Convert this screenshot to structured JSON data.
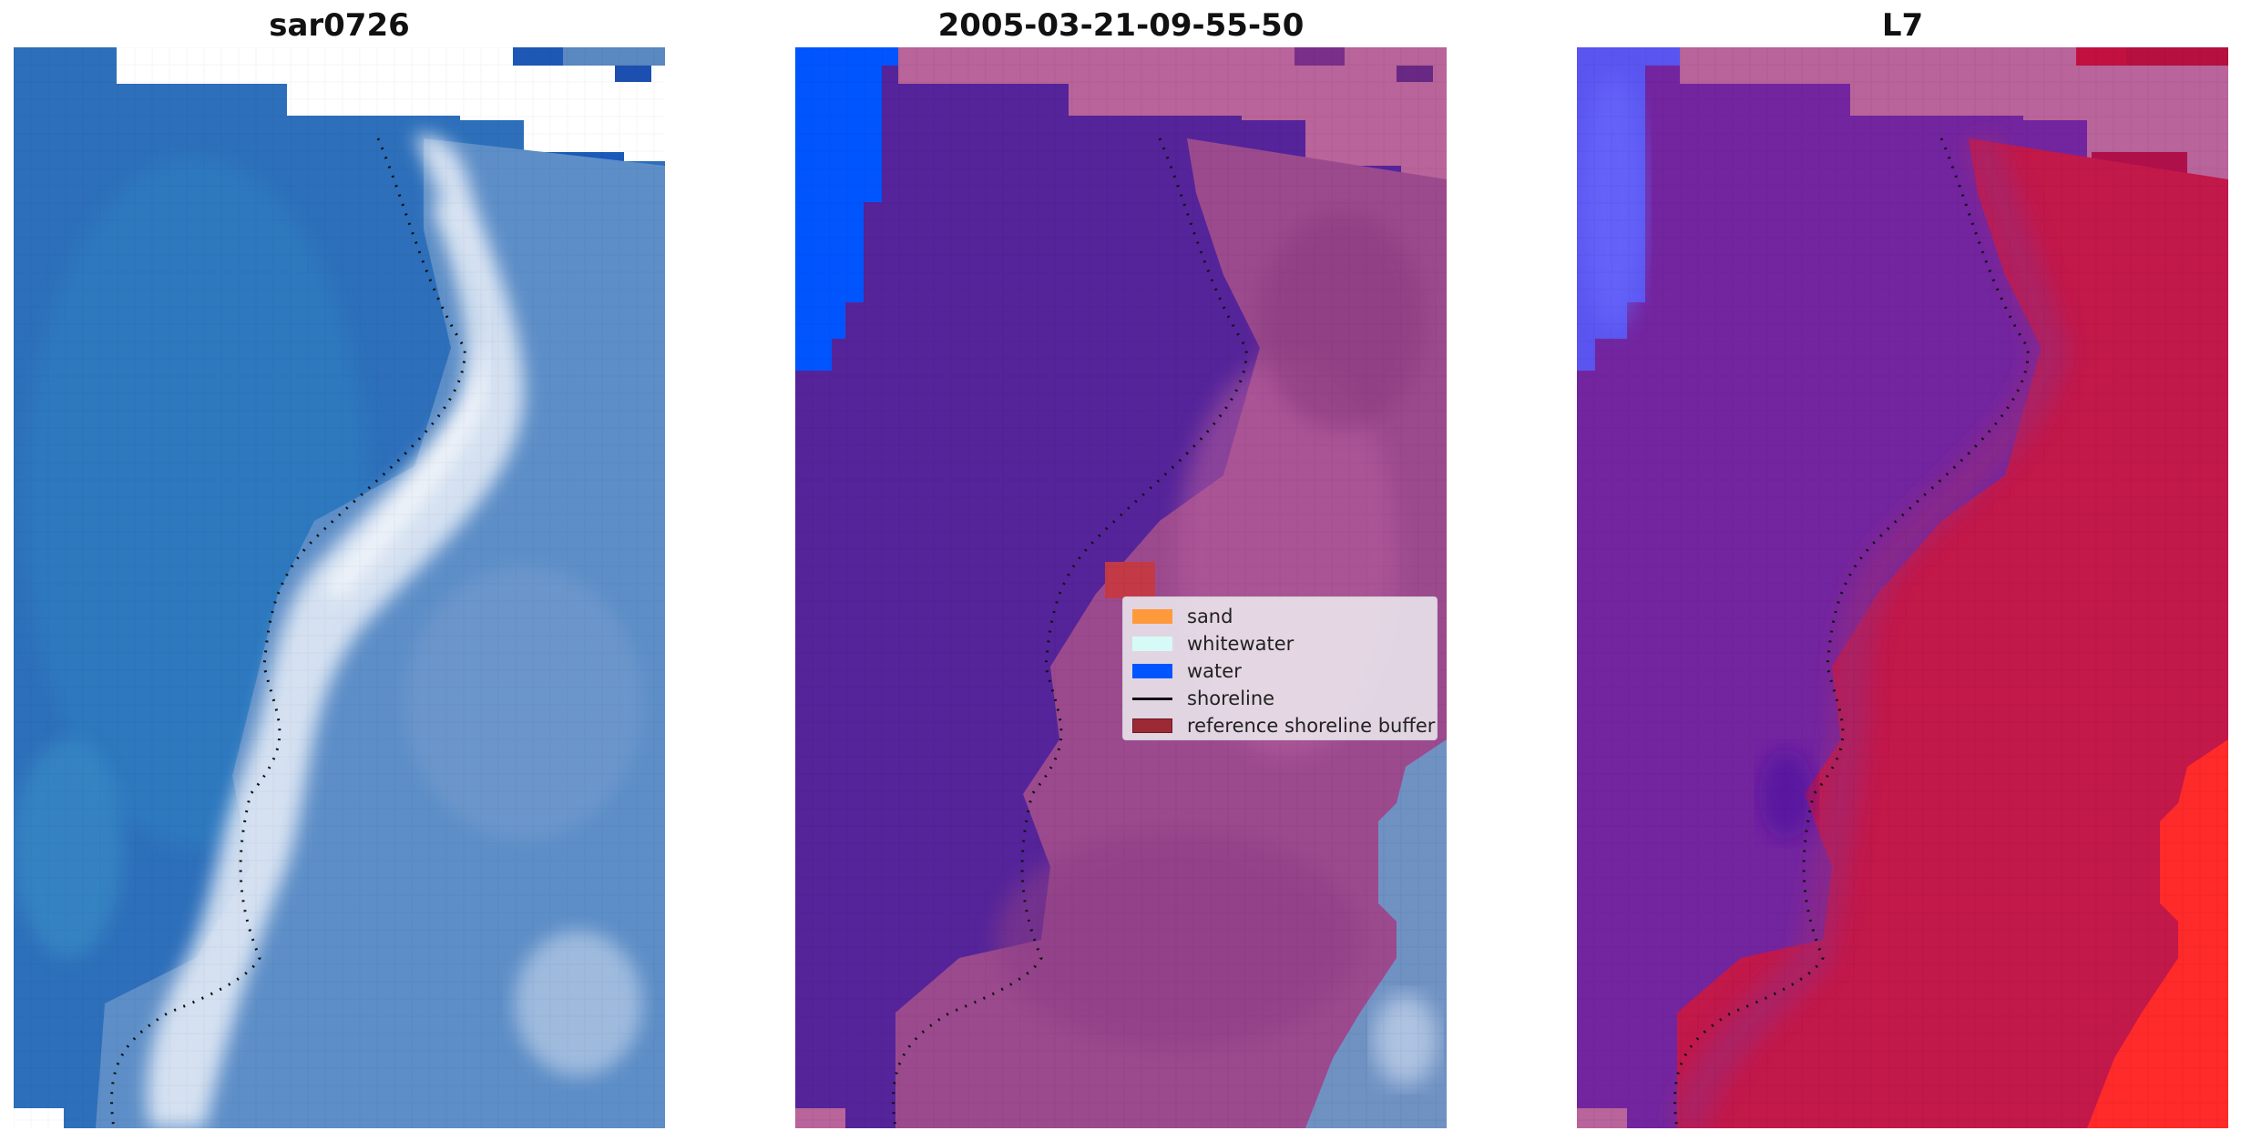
{
  "panels": [
    {
      "title": "sar0726",
      "image": "natural color satellite image of coastline with waves"
    },
    {
      "title": "2005-03-21-09-55-50",
      "image": "classified image overlay (water, sand, whitewater)"
    },
    {
      "title": "L7",
      "image": "water index image in purple/red colormap"
    }
  ],
  "legend": {
    "items": [
      {
        "label": "sand",
        "color": "#ff9a3c",
        "kind": "patch"
      },
      {
        "label": "whitewater",
        "color": "#d6fbf6",
        "kind": "patch"
      },
      {
        "label": "water",
        "color": "#0055ff",
        "kind": "patch"
      },
      {
        "label": "shoreline",
        "color": "#111111",
        "kind": "line"
      },
      {
        "label": "reference shoreline buffer",
        "color": "#9b2a35",
        "kind": "patch"
      }
    ]
  },
  "colors": {
    "sea_rgb": "#2c6fbb",
    "surf_rgb": "#e6eef8",
    "beach_rgb": "#6a8fc0",
    "water_class": "#55249a",
    "land_class": "#a35090",
    "nodata_class": "#b9659a",
    "mndwi_water": "#7325a0",
    "mndwi_land": "#c2184a"
  }
}
